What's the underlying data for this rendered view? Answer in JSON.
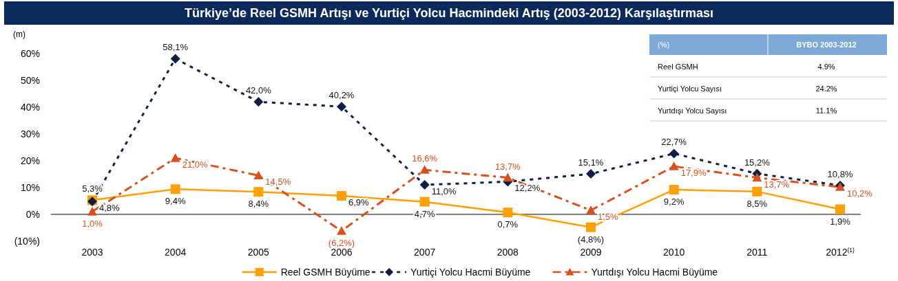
{
  "chart_data": {
    "type": "line",
    "title": "Türkiye’de Reel GSMH Artışı ve Yurtiçi Yolcu Hacmindeki Artış (2003-2012) Karşılaştırması",
    "ylabel": "(m)",
    "categories": [
      "2003",
      "2004",
      "2005",
      "2006",
      "2007",
      "2008",
      "2009",
      "2010",
      "2011",
      "2012$^{(1)}$"
    ],
    "series": [
      {
        "name": "Reel GSMH Büyüme",
        "color": "#ffa000",
        "marker": "square",
        "line_style": "solid",
        "values": [
          5.3,
          9.4,
          8.4,
          6.9,
          4.7,
          0.7,
          -4.8,
          9.2,
          8.5,
          1.9
        ],
        "value_labels": [
          "5,3%",
          "9,4%",
          "8,4%",
          "6,9%",
          "4,7%",
          "0,7%",
          "(4,8%)",
          "9,2%",
          "8,5%",
          "1,9%"
        ]
      },
      {
        "name": "Yurtiçi Yolcu Hacmi Büyüme",
        "color": "#0d1f45",
        "marker": "diamond",
        "line_style": "dotted",
        "values": [
          4.8,
          58.1,
          42.0,
          40.2,
          11.0,
          12.2,
          15.1,
          22.7,
          15.2,
          10.8
        ],
        "value_labels": [
          "4,8%",
          "58,1%",
          "42,0%",
          "40,2%",
          "11,0%",
          "12,2%",
          "15,1%",
          "22,7%",
          "15,2%",
          "10,8%"
        ]
      },
      {
        "name": "Yurtdışı Yolcu Hacmi Büyüme",
        "color": "#d9501e",
        "marker": "triangle",
        "line_style": "dashed",
        "values": [
          1.0,
          21.0,
          14.5,
          -6.2,
          16.6,
          13.7,
          1.5,
          17.9,
          13.7,
          10.2
        ],
        "value_labels": [
          "1,0%",
          "21,0%",
          "14,5%",
          "(6,2%)",
          "16,6%",
          "13,7%",
          "1,5%",
          "17,9%",
          "13,7%",
          "10,2%"
        ]
      }
    ],
    "ylim": [
      -10,
      60
    ],
    "yticks": [
      {
        "value": -10,
        "label": "(10%)"
      },
      {
        "value": 0,
        "label": "0%"
      },
      {
        "value": 10,
        "label": "10%"
      },
      {
        "value": 20,
        "label": "20%"
      },
      {
        "value": 30,
        "label": "30%"
      },
      {
        "value": 40,
        "label": "40%"
      },
      {
        "value": 50,
        "label": "50%"
      },
      {
        "value": 60,
        "label": "60%"
      }
    ],
    "grid": false,
    "legend": "bottom",
    "ref_lines": [
      {
        "axis": "y",
        "value": 0,
        "color": "#000000"
      }
    ],
    "annotations": [
      "(%)",
      "BYBO 2003-2012",
      "Reel GSMH",
      "4.9%",
      "Yurtiçi Yolcu Sayısı",
      "24.2%",
      "Yurtdışı Yolcu Sayısı",
      "11.1%"
    ]
  }
}
